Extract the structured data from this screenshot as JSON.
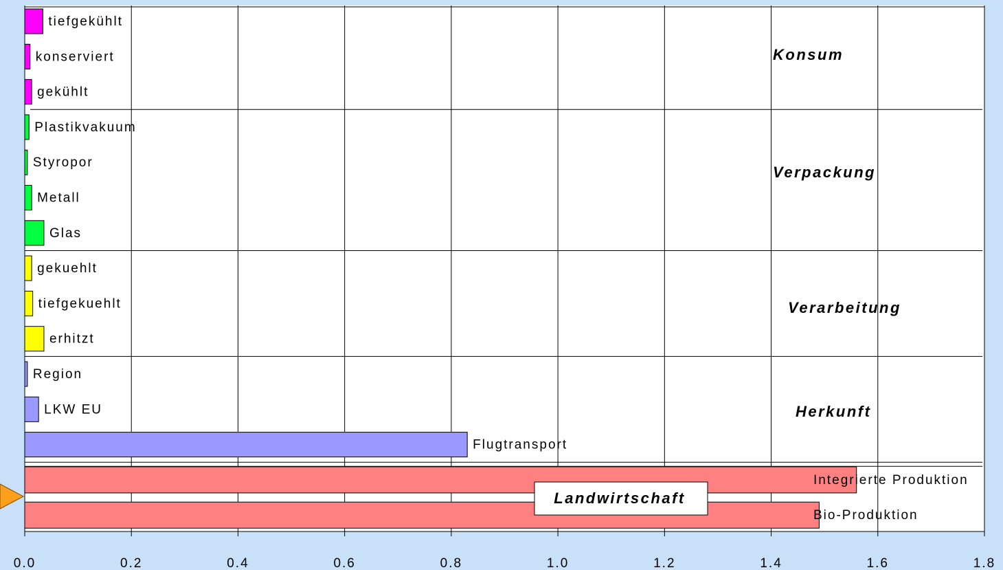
{
  "chart_data": {
    "type": "bar",
    "groups": [
      {
        "name": "Konsum",
        "color": "#ff00ff",
        "categories": [
          "tiefgekühlt",
          "konserviert",
          "gekühlt"
        ],
        "values": [
          0.034,
          0.01,
          0.013
        ]
      },
      {
        "name": "Verpackung",
        "color": "#00ff40",
        "categories": [
          "Plastikvakuum",
          "Styropor",
          "Metall",
          "Glas"
        ],
        "values": [
          0.008,
          0.005,
          0.013,
          0.036
        ]
      },
      {
        "name": "Verarbeitung",
        "color": "#ffff00",
        "categories": [
          "gekuehlt",
          "tiefgekuehlt",
          "erhitzt"
        ],
        "values": [
          0.013,
          0.015,
          0.036
        ]
      },
      {
        "name": "Herkunft",
        "color": "#9999ff",
        "categories": [
          "Region",
          "LKW EU",
          "Flugtransport"
        ],
        "values": [
          0.005,
          0.026,
          0.83
        ]
      },
      {
        "name": "Landwirtschaft",
        "color": "#ff8080",
        "categories": [
          "Integrierte Produktion",
          "Bio-Produktion"
        ],
        "values": [
          1.56,
          1.49
        ]
      }
    ],
    "xlim": [
      0,
      1.8
    ],
    "xticks": [
      {
        "value": 0,
        "label": "0.0"
      },
      0.2,
      0.4,
      0.6,
      0.8,
      {
        "value": 1,
        "label": "1.0"
      },
      1.2,
      1.4,
      1.6,
      1.8
    ],
    "grid": true
  }
}
